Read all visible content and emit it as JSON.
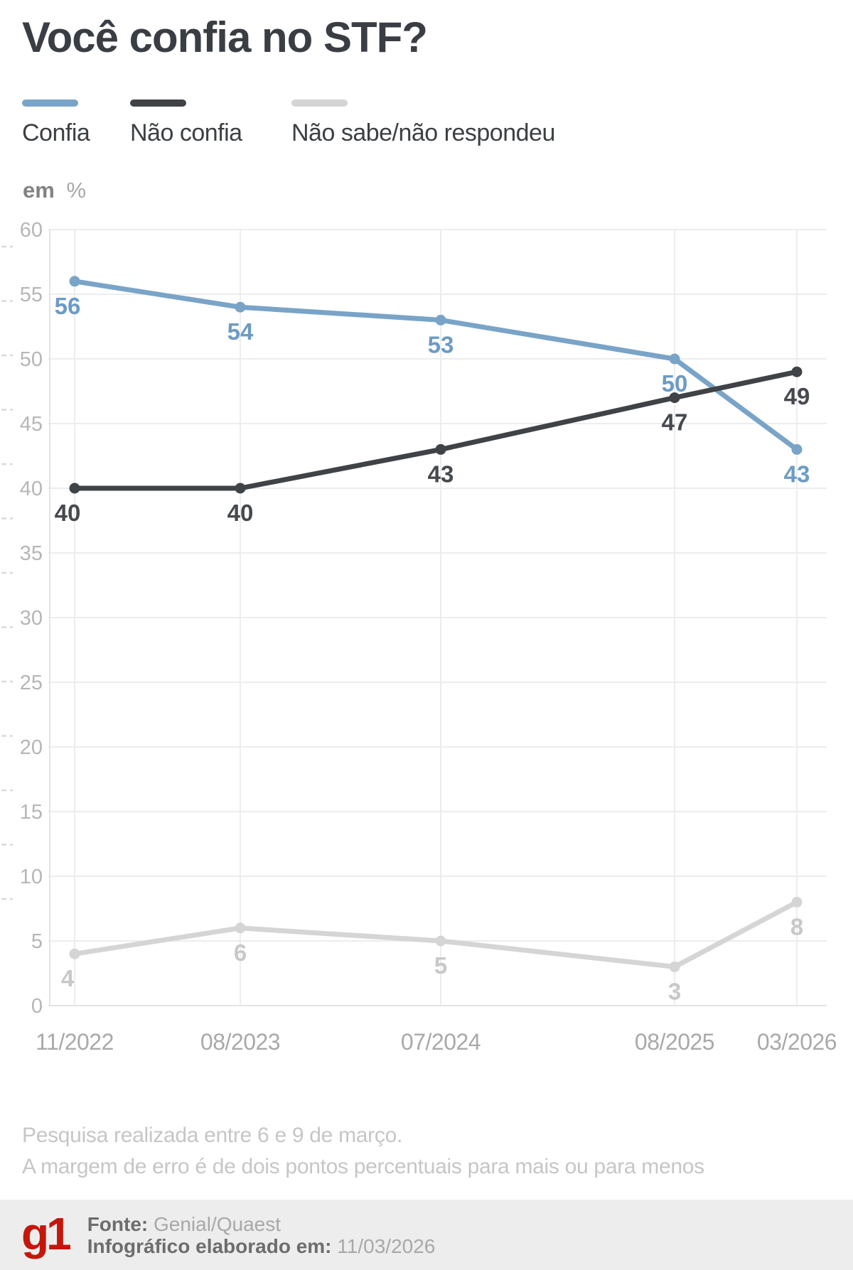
{
  "title": "Você confia no STF?",
  "axis_title": {
    "bold": "em",
    "light": "%"
  },
  "chart_data": {
    "type": "line",
    "categories": [
      "11/2022",
      "08/2023",
      "07/2024",
      "08/2025",
      "03/2026"
    ],
    "series": [
      {
        "name": "Confia",
        "color": "#79a4c8",
        "label_color": "#6d9bc4",
        "values": [
          56,
          54,
          53,
          50,
          43
        ]
      },
      {
        "name": "Não confia",
        "color": "#3f4347",
        "label_color": "#46494d",
        "values": [
          40,
          40,
          43,
          47,
          49
        ]
      },
      {
        "name": "Não sabe/não respondeu",
        "color": "#d5d5d5",
        "label_color": "#c8c8c8",
        "values": [
          4,
          6,
          5,
          3,
          8
        ]
      }
    ],
    "title": "Você confia no STF?",
    "xlabel": "",
    "ylabel": "em %",
    "ylim": [
      0,
      60
    ],
    "ytick_step": 5,
    "grid": true,
    "legend_position": "top"
  },
  "notes": [
    "Pesquisa realizada entre 6 e 9 de março.",
    "A margem de erro é de dois pontos percentuais para mais ou para menos"
  ],
  "footer": {
    "logo": "g1",
    "source_label": "Fonte:",
    "source_value": "Genial/Quaest",
    "made_label": "Infográfico elaborado em:",
    "made_value": "11/03/2026"
  }
}
